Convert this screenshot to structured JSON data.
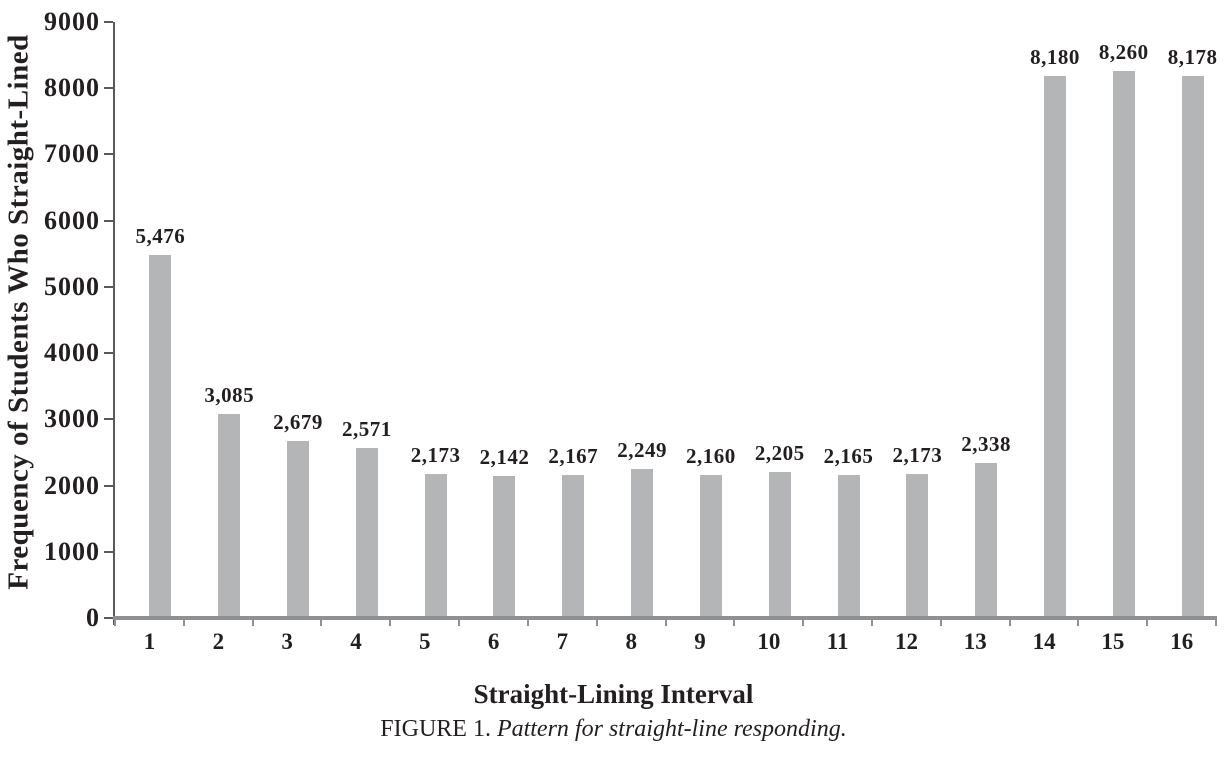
{
  "chart_data": {
    "type": "bar",
    "title": "",
    "xlabel": "Straight-Lining Interval",
    "ylabel": "Frequency of Students Who Straight-Lined",
    "categories": [
      "1",
      "2",
      "3",
      "4",
      "5",
      "6",
      "7",
      "8",
      "9",
      "10",
      "11",
      "12",
      "13",
      "14",
      "15",
      "16"
    ],
    "values": [
      5476,
      3085,
      2679,
      2571,
      2173,
      2142,
      2167,
      2249,
      2160,
      2205,
      2165,
      2173,
      2338,
      8180,
      8260,
      8178
    ],
    "value_labels": [
      "5,476",
      "3,085",
      "2,679",
      "2,571",
      "2,173",
      "2,142",
      "2,167",
      "2,249",
      "2,160",
      "2,205",
      "2,165",
      "2,173",
      "2,338",
      "8,180",
      "8,260",
      "8,178"
    ],
    "ylim": [
      0,
      9000
    ],
    "yticks": [
      0,
      1000,
      2000,
      3000,
      4000,
      5000,
      6000,
      7000,
      8000,
      9000
    ],
    "ytick_labels": [
      "0",
      "1000",
      "2000",
      "3000",
      "4000",
      "5000",
      "6000",
      "7000",
      "8000",
      "9000"
    ],
    "grid": false,
    "legend_position": "none",
    "bar_color": "#b3b5b7",
    "x_axis_color": "#8e9093",
    "y_axis_color": "#58595b",
    "text_color": "#231f20"
  },
  "caption": {
    "prefix": "FIGURE 1. ",
    "text": "Pattern for straight-line responding."
  }
}
